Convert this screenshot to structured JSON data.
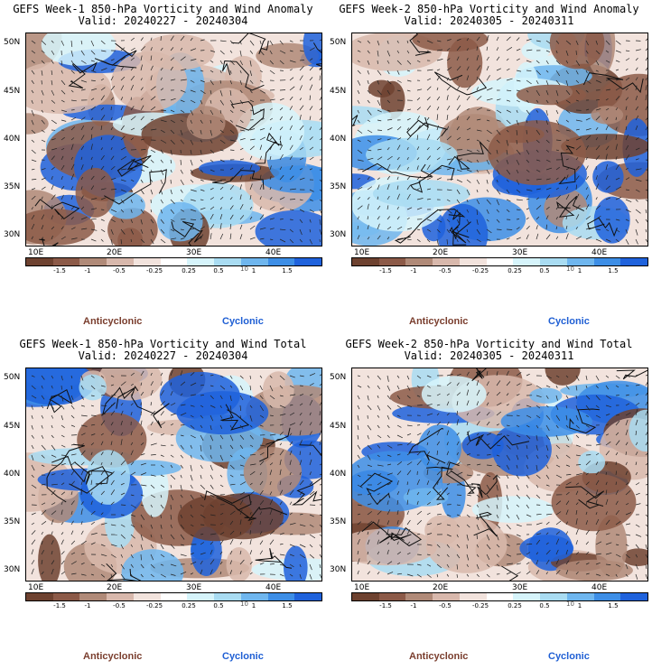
{
  "panels": [
    {
      "title": "GEFS Week-1 850-hPa Vorticity and Wind Anomaly",
      "valid": "Valid: 20240227 - 20240304"
    },
    {
      "title": "GEFS Week-2 850-hPa Vorticity and Wind Anomaly",
      "valid": "Valid: 20240305 - 20240311"
    },
    {
      "title": "GEFS Week-1 850-hPa Vorticity and Wind Total",
      "valid": "Valid: 20240227 - 20240304"
    },
    {
      "title": "GEFS Week-2 850-hPa Vorticity and Wind Total",
      "valid": "Valid: 20240305 - 20240311"
    }
  ],
  "lat_labels": [
    "50N",
    "45N",
    "40N",
    "35N",
    "30N"
  ],
  "lon_labels": [
    "10E",
    "20E",
    "30E",
    "40E"
  ],
  "colorbar": {
    "labels": [
      "-1.5",
      "-1",
      "-0.5",
      "-0.25",
      "0.25",
      "0.5",
      "1",
      "1.5"
    ],
    "unit_label": "10",
    "colors": [
      "#6e4230",
      "#8c5a48",
      "#b08a78",
      "#d8b8ac",
      "#f2e3dd",
      "#ffffff",
      "#d6f4fb",
      "#a9dcf2",
      "#6fb6ee",
      "#3d8ee6",
      "#1f62dc"
    ]
  },
  "legend": {
    "anticyclonic": "Anticyclonic",
    "cyclonic": "Cyclonic"
  },
  "colors": {
    "anticyclonic": "#7a3e2e",
    "cyclonic": "#1f5fd4"
  }
}
